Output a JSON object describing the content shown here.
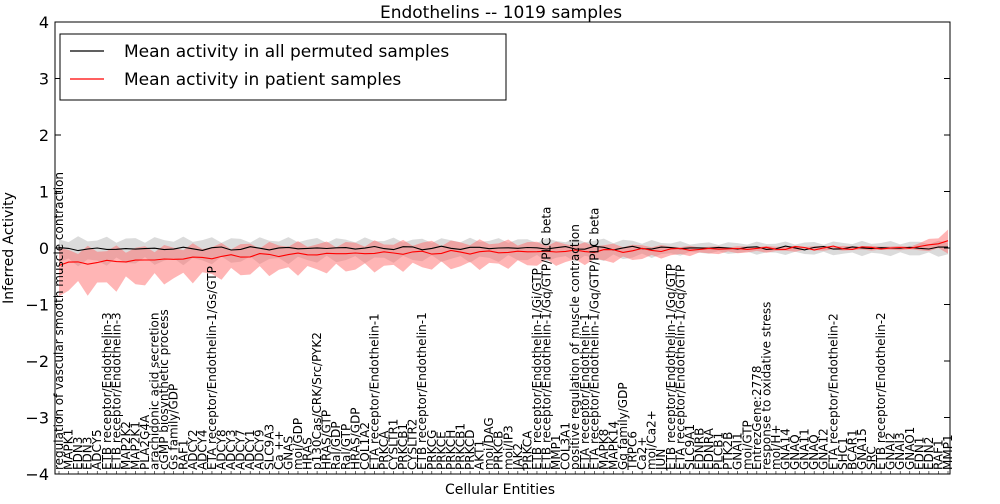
{
  "chart_data": {
    "type": "line",
    "title": "Endothelins -- 1019 samples",
    "xlabel": "Cellular Entities",
    "ylabel": "Inferred Activity",
    "ylim": [
      -4,
      4
    ],
    "yticks": [
      "−4",
      "−3",
      "−2",
      "−1",
      "0",
      "1",
      "2",
      "3",
      "4"
    ],
    "legend": {
      "placement": "top-left",
      "entries": [
        {
          "label": "Mean activity in all permuted samples",
          "color": "#000000"
        },
        {
          "label": "Mean activity in patient samples",
          "color": "#ff0000"
        }
      ]
    },
    "categories": [
      "regulation of vascular smooth muscle contraction",
      "MAPK1",
      "EDN3",
      "EDN3",
      "ADCY5",
      "ETB receptor/Endothelin-3",
      "ETB receptor/Endothelin-3",
      "MAP2K2",
      "MAP2K1",
      "PLA2G4A",
      "arachidonic acid secretion",
      "cGMP biosynthetic process",
      "Gs family/GDP",
      "RAF1",
      "ADCY2",
      "ADCY4",
      "ETA receptor/Endothelin-1/Gs/GTP",
      "ADCY8",
      "ADCY3",
      "ADCY7",
      "ADCY1",
      "ADCY9",
      "SLC9A3",
      "Ca ++",
      "GNAS",
      "moi/GDP",
      "HRAS",
      "p130Cas/CRK/Src/PYK2",
      "HRAS/GTP",
      "Ral/GDP",
      "Ral/GTP",
      "HRAS/GDP",
      "COL1A2",
      "ETA receptor/Endothelin-1",
      "PRKCA",
      "CYSLTR1",
      "PRKCB1",
      "CYSLTR2",
      "ETB receptor/Endothelin-1",
      "PRKCG",
      "PRKCE",
      "PRKCH",
      "PRKCB1",
      "PRKCD",
      "AKT1",
      "moi/DAG",
      "PRKCB",
      "moi/IP3",
      "JAK2",
      "PRKCA",
      "ETB receptor/Endothelin-1/Gi/GTP",
      "ETB receptor/Endothelin-1/Gq/GTP/PLC beta",
      "MMP1",
      "COL3A1",
      "positive regulation of muscle contraction",
      "ETA receptor/Endothelin-1",
      "ETA receptor/Endothelin-1/Gq/GTP/PLC beta",
      "MAPK8",
      "MAPK14",
      "Gq family/GDP",
      "TRPC6",
      "Ca2+",
      "moi/Ca2+",
      "JUN",
      "ETB receptor/Endothelin-1/Gq/GTP",
      "ETA receptor/Endothelin-1/Gq/GTP",
      "SLC9A1",
      "EDNRB",
      "EDNRA",
      "PLCB1",
      "PTK2B",
      "GNAI1",
      "moi/GTP",
      "EntrezGene:2778",
      "response to oxidative stress",
      "moi/H+",
      "GNA14",
      "GNAQ",
      "GNA11",
      "GNAQ",
      "GNA12",
      "ETA receptor/Endothelin-2",
      "SHC1",
      "BCAR1",
      "GNA15",
      "SRC",
      "ETB receptor/Endothelin-2",
      "GNAI2",
      "GNAI3",
      "GNAO1",
      "EDN1",
      "EDN2",
      "RAF1",
      "MMP1"
    ],
    "series": [
      {
        "name": "Mean activity in patient samples",
        "color": "#ff0000",
        "anchors": [
          {
            "t": 0.0,
            "mean": -0.28,
            "lo": -0.75,
            "hi": -0.05
          },
          {
            "t": 0.12,
            "mean": -0.2,
            "lo": -0.55,
            "hi": 0.0
          },
          {
            "t": 0.22,
            "mean": -0.13,
            "lo": -0.42,
            "hi": 0.05
          },
          {
            "t": 0.35,
            "mean": -0.09,
            "lo": -0.35,
            "hi": 0.08
          },
          {
            "t": 0.5,
            "mean": -0.07,
            "lo": -0.3,
            "hi": 0.1
          },
          {
            "t": 0.62,
            "mean": -0.05,
            "lo": -0.22,
            "hi": 0.05
          },
          {
            "t": 0.72,
            "mean": -0.02,
            "lo": -0.1,
            "hi": 0.02
          },
          {
            "t": 0.85,
            "mean": 0.0,
            "lo": -0.04,
            "hi": 0.03
          },
          {
            "t": 0.96,
            "mean": 0.0,
            "lo": -0.03,
            "hi": 0.03
          },
          {
            "t": 1.0,
            "mean": 0.12,
            "lo": -0.05,
            "hi": 0.28
          }
        ]
      },
      {
        "name": "Mean activity in all permuted samples",
        "color": "#000000",
        "anchors": [
          {
            "t": 0.0,
            "mean": -0.02,
            "lo": -0.25,
            "hi": 0.15
          },
          {
            "t": 0.35,
            "mean": 0.0,
            "lo": -0.2,
            "hi": 0.14
          },
          {
            "t": 0.62,
            "mean": 0.0,
            "lo": -0.18,
            "hi": 0.13
          },
          {
            "t": 0.72,
            "mean": 0.0,
            "lo": -0.08,
            "hi": 0.08
          },
          {
            "t": 1.0,
            "mean": 0.0,
            "lo": -0.12,
            "hi": 0.1
          }
        ]
      }
    ]
  }
}
